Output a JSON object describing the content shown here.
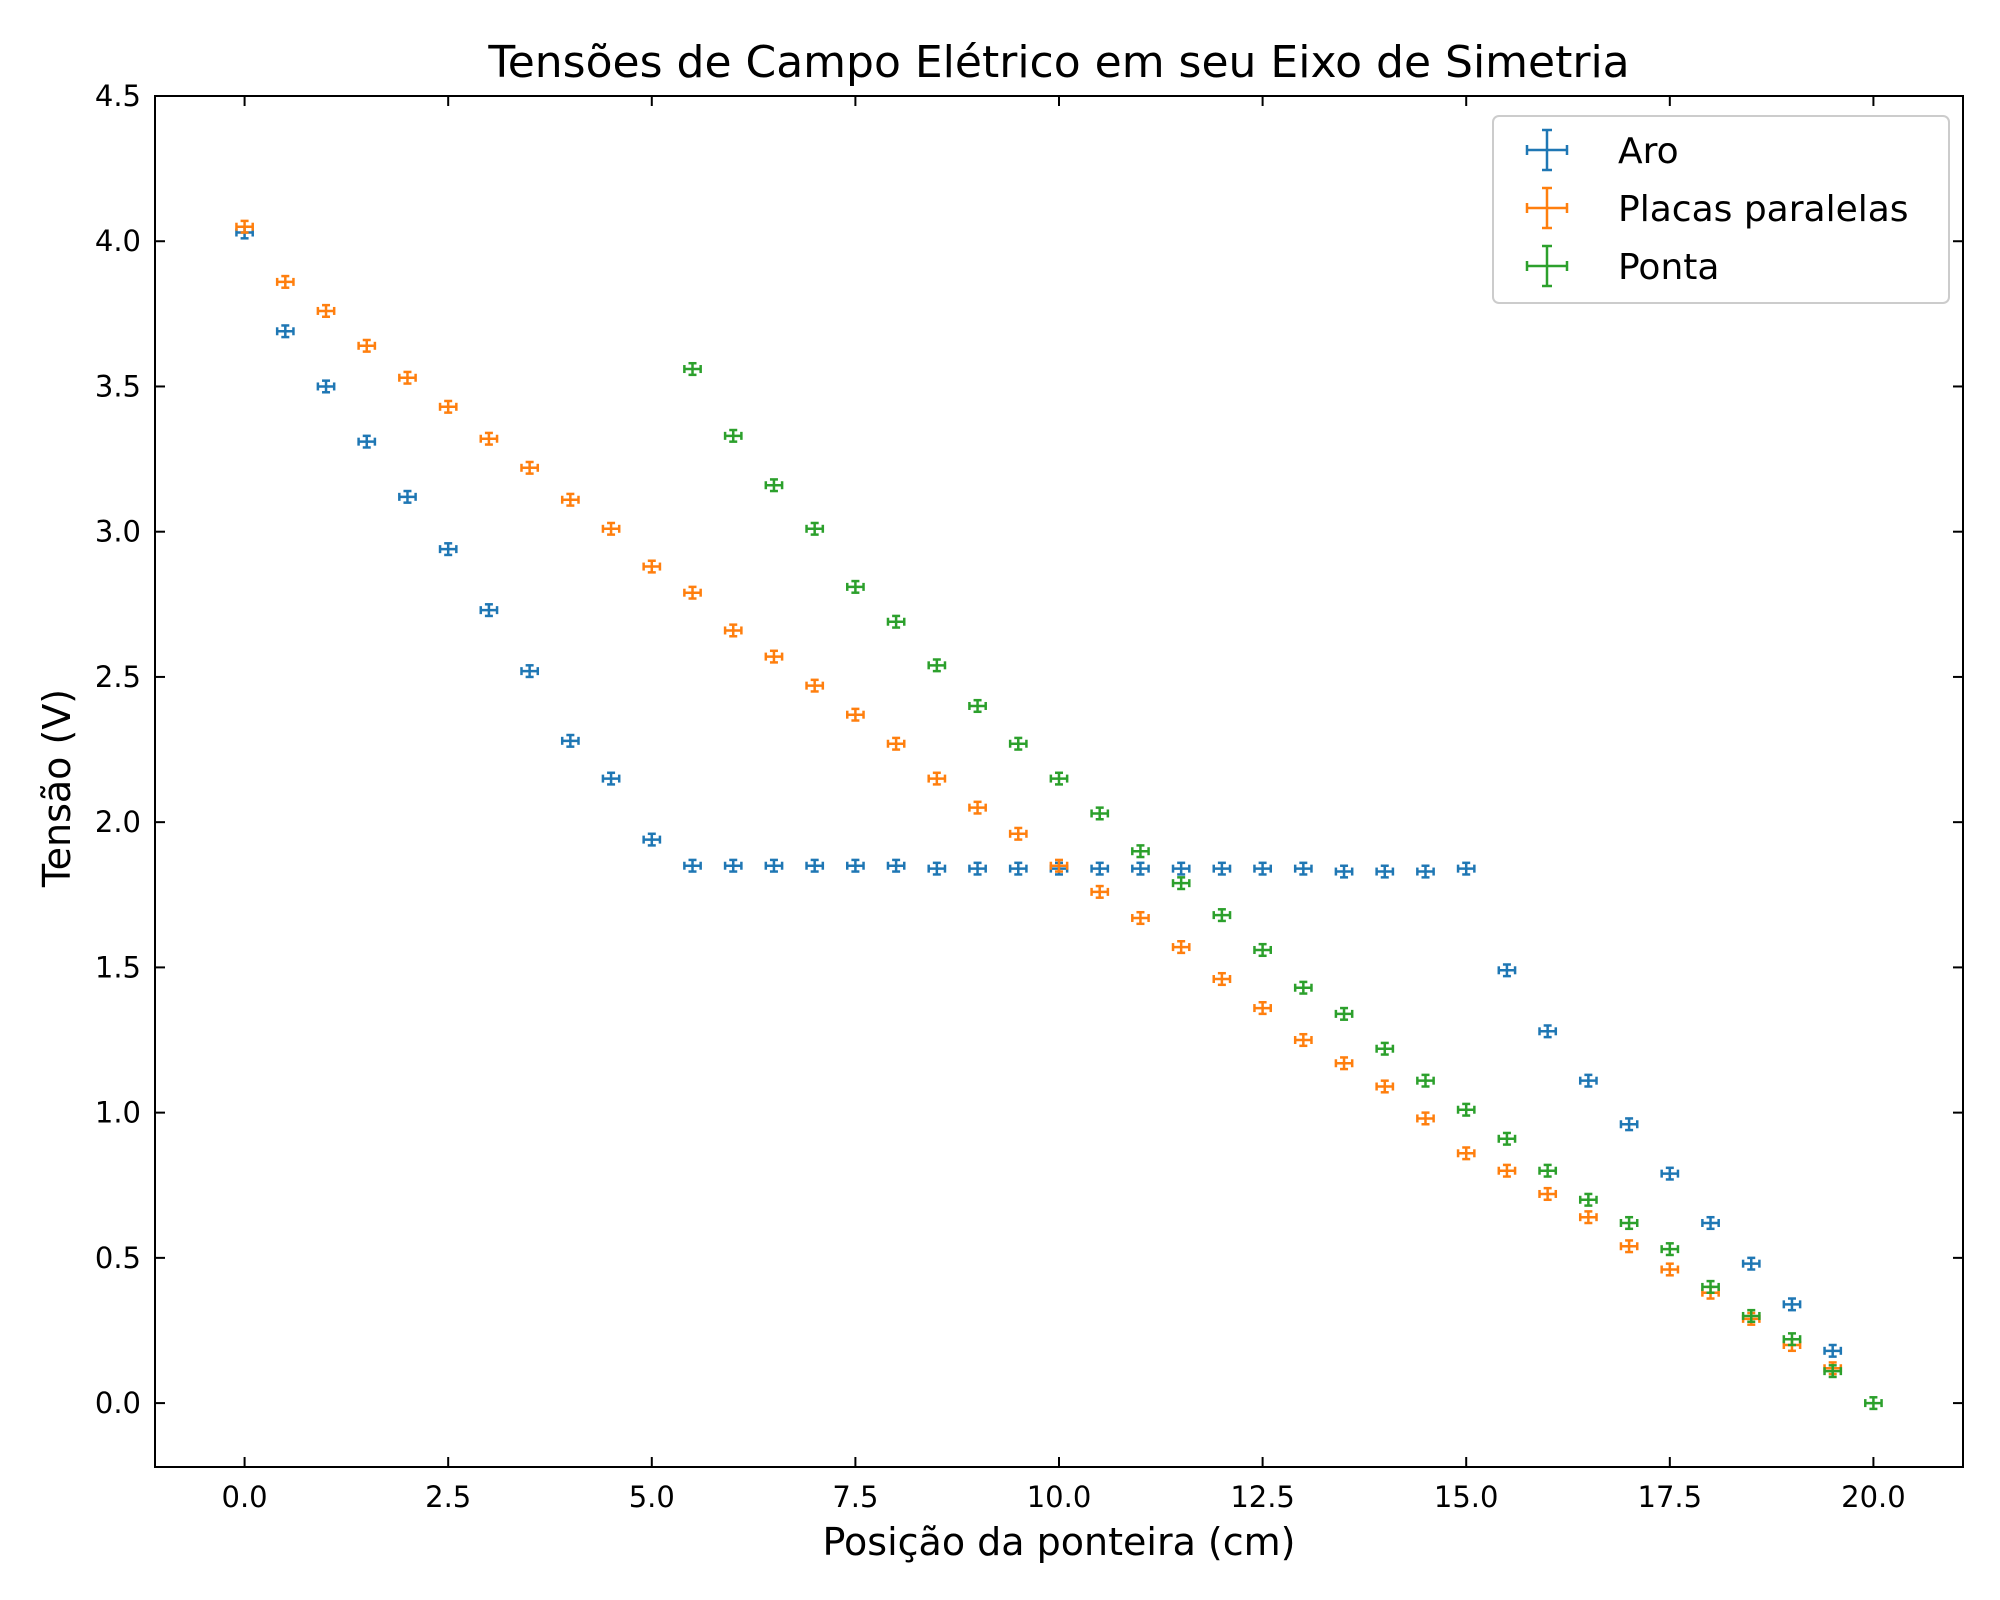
{
  "chart_data": {
    "type": "scatter",
    "title": "Tensões de Campo Elétrico em seu Eixo de Simetria",
    "xlabel": "Posição da ponteira (cm)",
    "ylabel": "Tensão (V)",
    "xlim": [
      -1.1,
      21.1
    ],
    "ylim": [
      -0.22,
      4.5
    ],
    "xticks": [
      "0.0",
      "2.5",
      "5.0",
      "7.5",
      "10.0",
      "12.5",
      "15.0",
      "17.5",
      "20.0"
    ],
    "yticks": [
      "0.0",
      "0.5",
      "1.0",
      "1.5",
      "2.0",
      "2.5",
      "3.0",
      "3.5",
      "4.0",
      "4.5"
    ],
    "x_error": 0.1,
    "y_error": 0.02,
    "grid": false,
    "legend_position": "top-right",
    "series": [
      {
        "name": "Aro",
        "color": "#1f77b4",
        "points": [
          [
            0.0,
            4.03
          ],
          [
            0.5,
            3.69
          ],
          [
            1.0,
            3.5
          ],
          [
            1.5,
            3.31
          ],
          [
            2.0,
            3.12
          ],
          [
            2.5,
            2.94
          ],
          [
            3.0,
            2.73
          ],
          [
            3.5,
            2.52
          ],
          [
            4.0,
            2.28
          ],
          [
            4.5,
            2.15
          ],
          [
            5.0,
            1.94
          ],
          [
            5.5,
            1.85
          ],
          [
            6.0,
            1.85
          ],
          [
            6.5,
            1.85
          ],
          [
            7.0,
            1.85
          ],
          [
            7.5,
            1.85
          ],
          [
            8.0,
            1.85
          ],
          [
            8.5,
            1.84
          ],
          [
            9.0,
            1.84
          ],
          [
            9.5,
            1.84
          ],
          [
            10.0,
            1.84
          ],
          [
            10.5,
            1.84
          ],
          [
            11.0,
            1.84
          ],
          [
            11.5,
            1.84
          ],
          [
            12.0,
            1.84
          ],
          [
            12.5,
            1.84
          ],
          [
            13.0,
            1.84
          ],
          [
            13.5,
            1.83
          ],
          [
            14.0,
            1.83
          ],
          [
            14.5,
            1.83
          ],
          [
            15.0,
            1.84
          ],
          [
            15.5,
            1.49
          ],
          [
            16.0,
            1.28
          ],
          [
            16.5,
            1.11
          ],
          [
            17.0,
            0.96
          ],
          [
            17.5,
            0.79
          ],
          [
            18.0,
            0.62
          ],
          [
            18.5,
            0.48
          ],
          [
            19.0,
            0.34
          ],
          [
            19.5,
            0.18
          ]
        ]
      },
      {
        "name": "Placas paralelas",
        "color": "#ff7f0e",
        "points": [
          [
            0.0,
            4.05
          ],
          [
            0.5,
            3.86
          ],
          [
            1.0,
            3.76
          ],
          [
            1.5,
            3.64
          ],
          [
            2.0,
            3.53
          ],
          [
            2.5,
            3.43
          ],
          [
            3.0,
            3.32
          ],
          [
            3.5,
            3.22
          ],
          [
            4.0,
            3.11
          ],
          [
            4.5,
            3.01
          ],
          [
            5.0,
            2.88
          ],
          [
            5.5,
            2.79
          ],
          [
            6.0,
            2.66
          ],
          [
            6.5,
            2.57
          ],
          [
            7.0,
            2.47
          ],
          [
            7.5,
            2.37
          ],
          [
            8.0,
            2.27
          ],
          [
            8.5,
            2.15
          ],
          [
            9.0,
            2.05
          ],
          [
            9.5,
            1.96
          ],
          [
            10.0,
            1.85
          ],
          [
            10.5,
            1.76
          ],
          [
            11.0,
            1.67
          ],
          [
            11.5,
            1.57
          ],
          [
            12.0,
            1.46
          ],
          [
            12.5,
            1.36
          ],
          [
            13.0,
            1.25
          ],
          [
            13.5,
            1.17
          ],
          [
            14.0,
            1.09
          ],
          [
            14.5,
            0.98
          ],
          [
            15.0,
            0.86
          ],
          [
            15.5,
            0.8
          ],
          [
            16.0,
            0.72
          ],
          [
            16.5,
            0.64
          ],
          [
            17.0,
            0.54
          ],
          [
            17.5,
            0.46
          ],
          [
            18.0,
            0.38
          ],
          [
            18.5,
            0.29
          ],
          [
            19.0,
            0.2
          ],
          [
            19.5,
            0.12
          ]
        ]
      },
      {
        "name": "Ponta",
        "color": "#2ca02c",
        "points": [
          [
            5.5,
            3.56
          ],
          [
            6.0,
            3.33
          ],
          [
            6.5,
            3.16
          ],
          [
            7.0,
            3.01
          ],
          [
            7.5,
            2.81
          ],
          [
            8.0,
            2.69
          ],
          [
            8.5,
            2.54
          ],
          [
            9.0,
            2.4
          ],
          [
            9.5,
            2.27
          ],
          [
            10.0,
            2.15
          ],
          [
            10.5,
            2.03
          ],
          [
            11.0,
            1.9
          ],
          [
            11.5,
            1.79
          ],
          [
            12.0,
            1.68
          ],
          [
            12.5,
            1.56
          ],
          [
            13.0,
            1.43
          ],
          [
            13.5,
            1.34
          ],
          [
            14.0,
            1.22
          ],
          [
            14.5,
            1.11
          ],
          [
            15.0,
            1.01
          ],
          [
            15.5,
            0.91
          ],
          [
            16.0,
            0.8
          ],
          [
            16.5,
            0.7
          ],
          [
            17.0,
            0.62
          ],
          [
            17.5,
            0.53
          ],
          [
            18.0,
            0.4
          ],
          [
            18.5,
            0.3
          ],
          [
            19.0,
            0.22
          ],
          [
            19.5,
            0.11
          ],
          [
            20.0,
            0.0
          ]
        ]
      }
    ]
  }
}
